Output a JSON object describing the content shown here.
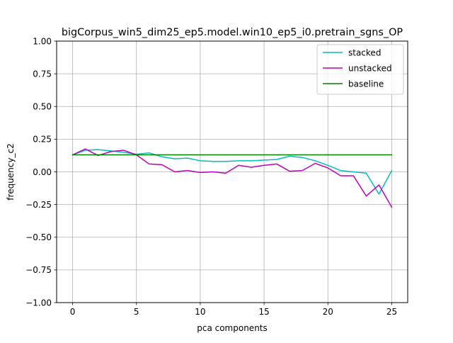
{
  "chart_data": {
    "type": "line",
    "title": "bigCorpus_win5_dim25_ep5.model.win10_ep5_i0.pretrain_sgns_OP",
    "xlabel": "pca components",
    "ylabel": "frequency_c2",
    "xlim": [
      -1.25,
      26.25
    ],
    "ylim": [
      -1.0,
      1.0
    ],
    "x_ticks": [
      0,
      5,
      10,
      15,
      20,
      25
    ],
    "x_tick_labels": [
      "0",
      "5",
      "10",
      "15",
      "20",
      "25"
    ],
    "y_ticks": [
      -1.0,
      -0.75,
      -0.5,
      -0.25,
      0.0,
      0.25,
      0.5,
      0.75,
      1.0
    ],
    "y_tick_labels": [
      "−1.00",
      "−0.75",
      "−0.50",
      "−0.25",
      "0.00",
      "0.25",
      "0.50",
      "0.75",
      "1.00"
    ],
    "grid": true,
    "legend_position": "top-right",
    "x": [
      0,
      1,
      2,
      3,
      4,
      5,
      6,
      7,
      8,
      9,
      10,
      11,
      12,
      13,
      14,
      15,
      16,
      17,
      18,
      19,
      20,
      21,
      22,
      23,
      24,
      25
    ],
    "series": [
      {
        "name": "stacked",
        "color": "#00bfbf",
        "values": [
          0.13,
          0.165,
          0.17,
          0.16,
          0.15,
          0.135,
          0.145,
          0.115,
          0.1,
          0.105,
          0.085,
          0.08,
          0.08,
          0.085,
          0.085,
          0.09,
          0.095,
          0.12,
          0.11,
          0.085,
          0.05,
          0.01,
          0.0,
          -0.01,
          -0.17,
          0.01
        ]
      },
      {
        "name": "unstacked",
        "color": "#bf00bf",
        "values": [
          0.13,
          0.175,
          0.125,
          0.155,
          0.165,
          0.13,
          0.06,
          0.055,
          0.0,
          0.01,
          -0.005,
          0.0,
          -0.01,
          0.05,
          0.035,
          0.05,
          0.06,
          0.005,
          0.01,
          0.065,
          0.03,
          -0.03,
          -0.03,
          -0.185,
          -0.1,
          -0.27
        ]
      },
      {
        "name": "baseline",
        "color": "#008000",
        "values": [
          0.13,
          0.13,
          0.13,
          0.13,
          0.13,
          0.13,
          0.13,
          0.13,
          0.13,
          0.13,
          0.13,
          0.13,
          0.13,
          0.13,
          0.13,
          0.13,
          0.13,
          0.13,
          0.13,
          0.13,
          0.13,
          0.13,
          0.13,
          0.13,
          0.13,
          0.13
        ]
      }
    ]
  }
}
